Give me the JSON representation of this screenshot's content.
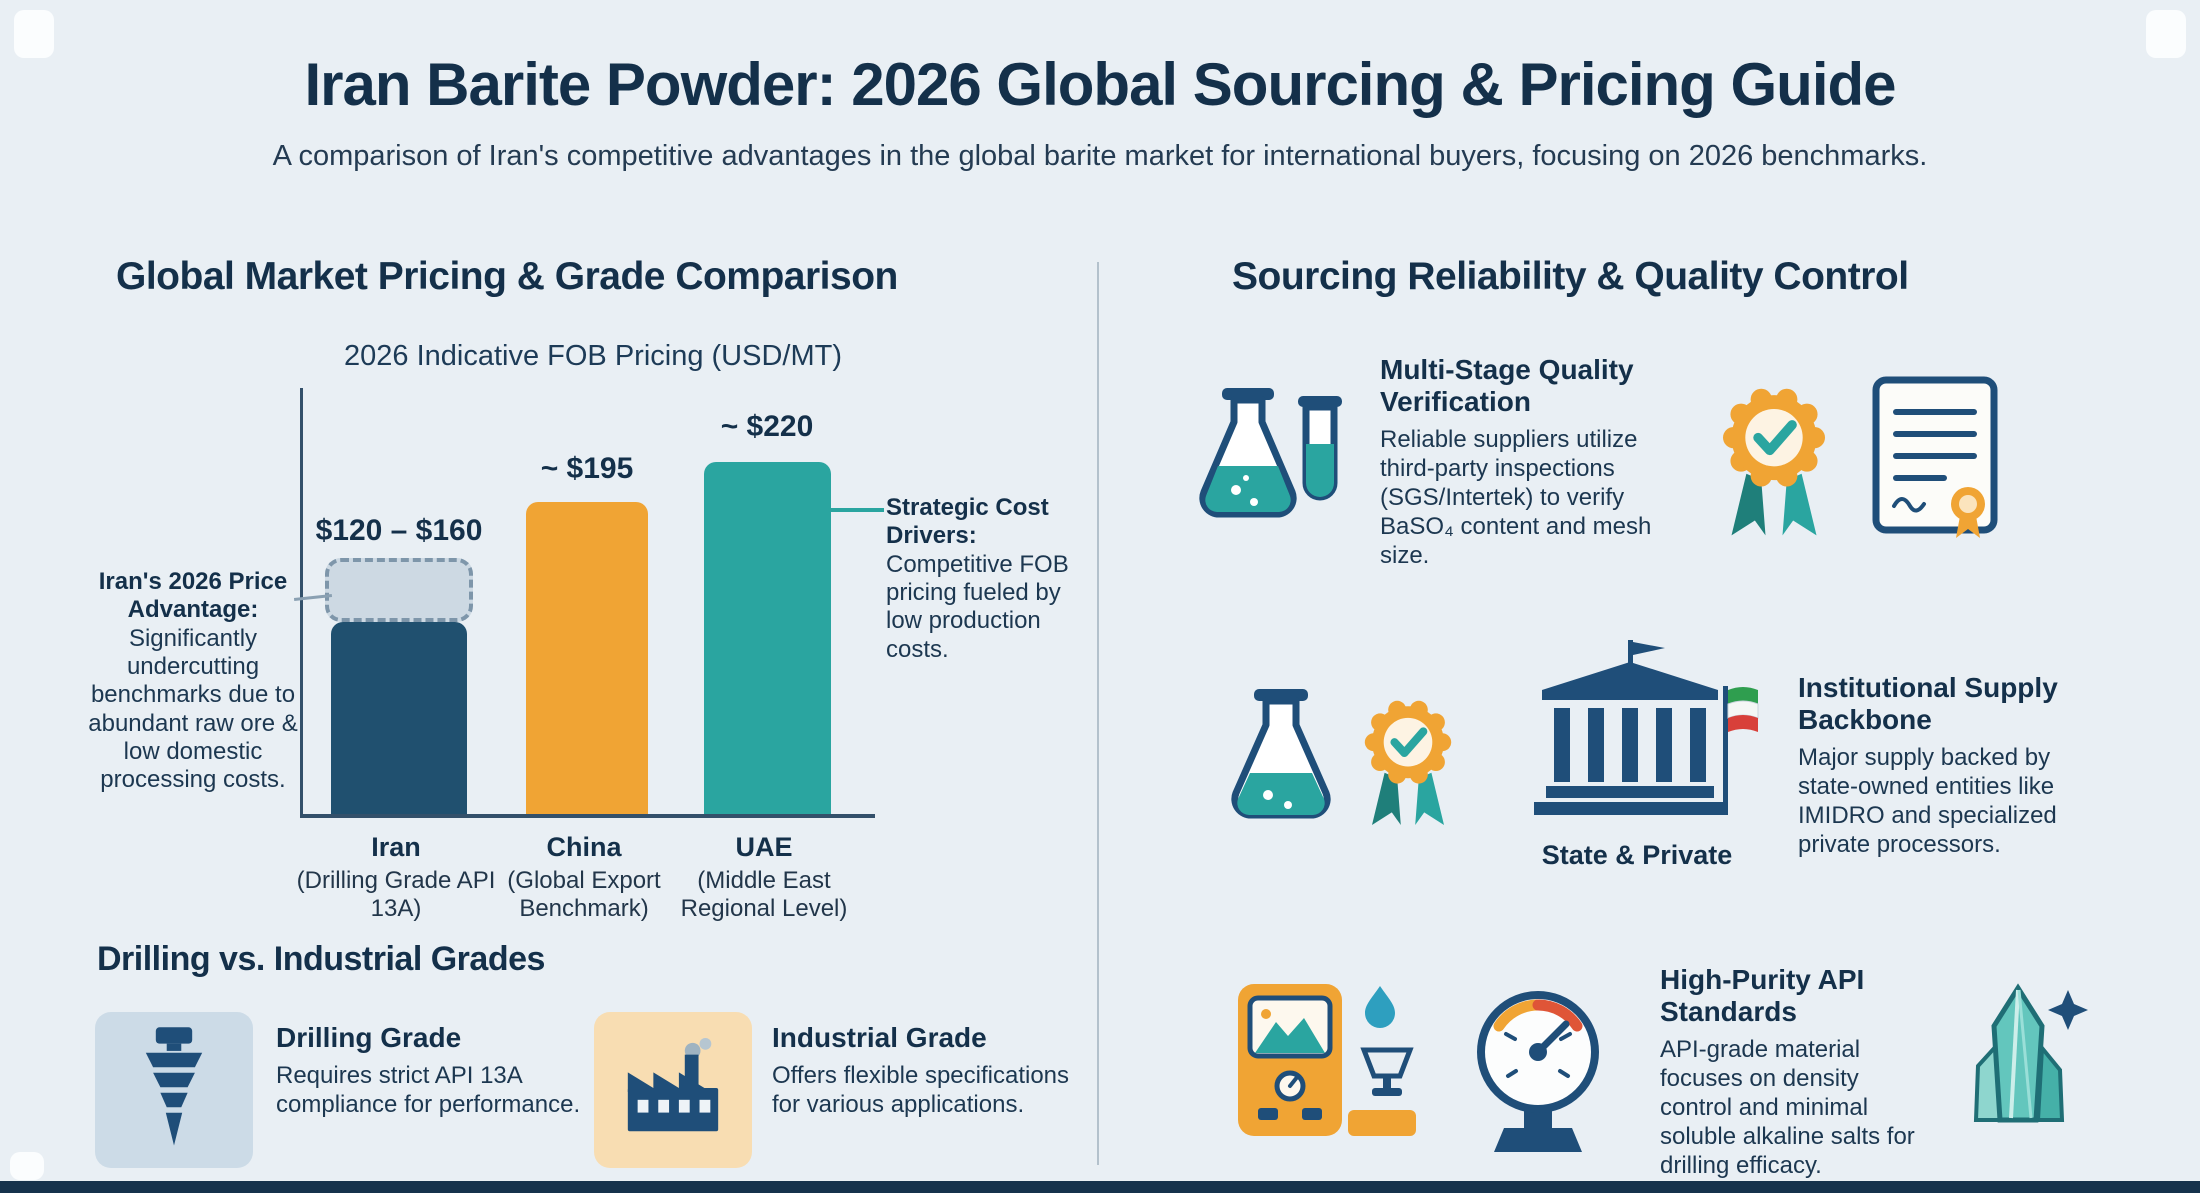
{
  "page": {
    "title": "Iran Barite Powder: 2026 Global Sourcing & Pricing Guide",
    "subtitle": "A comparison of Iran's competitive advantages in the global barite market for international buyers, focusing on 2026 benchmarks."
  },
  "pricing_section": {
    "heading": "Global Market Pricing & Grade Comparison",
    "left_annotation": {
      "title": "Iran's 2026 Price Advantage:",
      "body": "Significantly undercutting benchmarks due to abundant raw ore & low domestic processing costs."
    },
    "right_annotation": {
      "title": "Strategic Cost Drivers:",
      "body": "Competitive FOB pricing fueled by low production costs."
    }
  },
  "chart_data": {
    "type": "bar",
    "title": "2026 Indicative FOB Pricing (USD/MT)",
    "ylabel": "USD/MT",
    "ylim": [
      0,
      240
    ],
    "grid": false,
    "categories": [
      "Iran (Drilling Grade API 13A)",
      "China (Global Export Benchmark)",
      "UAE (Middle East Regional Level)"
    ],
    "bars": [
      {
        "category": "Iran",
        "sub_label": "(Drilling Grade API 13A)",
        "label": "$120 – $160",
        "value_low": 120,
        "value_high": 160,
        "color": "#20506f",
        "cap_style": "dashed-range"
      },
      {
        "category": "China",
        "sub_label": "(Global Export Benchmark)",
        "label": "~ $195",
        "value_low": 195,
        "color": "#f0a434"
      },
      {
        "category": "UAE",
        "sub_label": "(Middle East Regional Level)",
        "label": "~ $220",
        "value_low": 220,
        "color": "#2aa5a0"
      }
    ]
  },
  "grades_section": {
    "heading": "Drilling vs. Industrial Grades",
    "items": [
      {
        "title": "Drilling Grade",
        "body": "Requires strict API 13A compliance for performance."
      },
      {
        "title": "Industrial Grade",
        "body": "Offers flexible specifications for various applications."
      }
    ]
  },
  "sourcing_section": {
    "heading": "Sourcing Reliability & Quality Control",
    "items": [
      {
        "title": "Multi-Stage Quality Verification",
        "body": "Reliable suppliers utilize third-party inspections (SGS/Intertek) to verify BaSO₄ content and mesh size."
      },
      {
        "title": "Institutional Supply Backbone",
        "body": "Major supply backed by state-owned entities like IMIDRO and specialized private processors.",
        "caption": "State & Private"
      },
      {
        "title": "High-Purity API Standards",
        "body": "API-grade material focuses on density control and minimal soluble alkaline salts for drilling efficacy."
      }
    ]
  },
  "icons": {
    "grades": [
      "drill-bit-icon",
      "factory-icon"
    ],
    "row1": [
      "lab-flasks-icon",
      "quality-badge-icon",
      "certificate-icon"
    ],
    "row2": [
      "lab-flask-icon",
      "quality-badge-icon",
      "bank-with-flag-icon"
    ],
    "row3": [
      "density-meter-icon",
      "gauge-icon",
      "barite-crystal-icon"
    ]
  },
  "colors": {
    "background": "#e9eff4",
    "heading_text": "#14304a",
    "body_text": "#1c3750",
    "iran_bar": "#20506f",
    "china_bar": "#f0a434",
    "uae_bar": "#2aa5a0",
    "range_cap_fill": "#cdd9e3",
    "accent_teal": "#2aa5a0",
    "accent_orange": "#f0a434",
    "footer_bar": "#16324c"
  }
}
